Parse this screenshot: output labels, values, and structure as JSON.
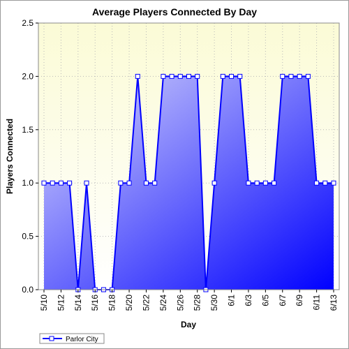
{
  "chart_data": {
    "type": "area",
    "title": "Average Players Connected By Day",
    "xlabel": "Day",
    "ylabel": "Players Connected",
    "ylim": [
      0,
      2.5
    ],
    "yticks": [
      "0.0",
      "0.5",
      "1.0",
      "1.5",
      "2.0",
      "2.5"
    ],
    "x": [
      "5/10",
      "5/11",
      "5/12",
      "5/13",
      "5/14",
      "5/15",
      "5/16",
      "5/17",
      "5/18",
      "5/19",
      "5/20",
      "5/21",
      "5/22",
      "5/23",
      "5/24",
      "5/25",
      "5/26",
      "5/27",
      "5/28",
      "5/29",
      "5/30",
      "5/31",
      "6/1",
      "6/2",
      "6/3",
      "6/4",
      "6/5",
      "6/6",
      "6/7",
      "6/8",
      "6/9",
      "6/10",
      "6/11",
      "6/12",
      "6/13"
    ],
    "xtick_labels": [
      "5/10",
      "5/12",
      "5/14",
      "5/16",
      "5/18",
      "5/20",
      "5/22",
      "5/24",
      "5/26",
      "5/28",
      "5/30",
      "6/1",
      "6/3",
      "6/5",
      "6/7",
      "6/9",
      "6/11",
      "6/13"
    ],
    "series": [
      {
        "name": "Parlor City",
        "values": [
          1,
          1,
          1,
          1,
          0,
          1,
          0,
          0,
          0,
          1,
          1,
          2,
          1,
          1,
          2,
          2,
          2,
          2,
          2,
          0,
          1,
          2,
          2,
          2,
          1,
          1,
          1,
          1,
          2,
          2,
          2,
          2,
          1,
          1,
          1
        ]
      }
    ],
    "grid": true,
    "legend": "bottom-left",
    "colors": {
      "line": "#0000ff",
      "fill_light": "#d8d8fa",
      "fill_dark": "#0000ff",
      "plot_bg_top": "#fbfbd6",
      "plot_bg_bottom": "#ffffff"
    }
  }
}
